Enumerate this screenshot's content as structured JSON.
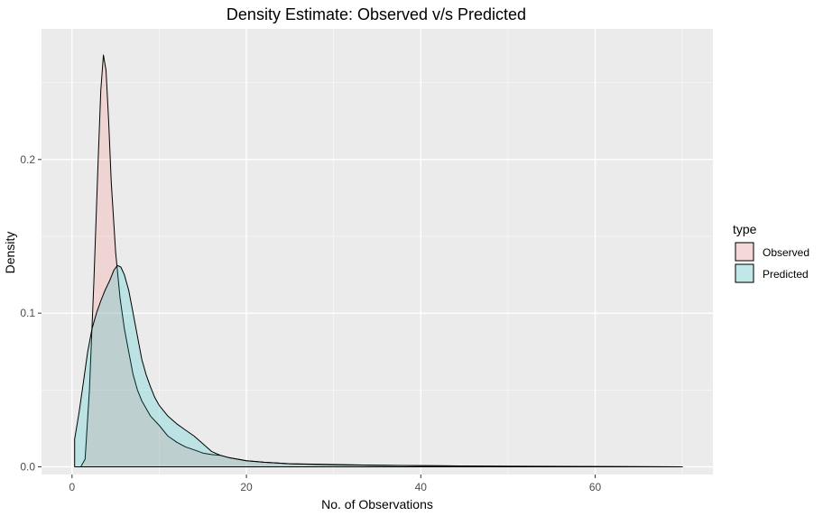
{
  "chart_data": {
    "type": "area",
    "title": "Density Estimate: Observed v/s Predicted",
    "xlabel": "No. of Observations",
    "ylabel": "Density",
    "xlim": [
      -3.5,
      73.5
    ],
    "ylim": [
      -0.005,
      0.285
    ],
    "x_ticks": [
      0,
      20,
      40,
      60
    ],
    "x_tick_labels": [
      "0",
      "20",
      "40",
      "60"
    ],
    "y_ticks": [
      0.0,
      0.1,
      0.2
    ],
    "y_tick_labels": [
      "0.0",
      "0.1",
      "0.2"
    ],
    "x_minor_ticks": [
      10,
      30,
      50,
      70
    ],
    "y_minor_ticks": [
      0.05,
      0.15,
      0.25
    ],
    "grid": true,
    "legend": {
      "title": "type",
      "position": "right"
    },
    "series": [
      {
        "name": "Observed",
        "fill": "#F8766D",
        "x": [
          0.5,
          1.0,
          1.5,
          2.0,
          2.5,
          3.0,
          3.3,
          3.6,
          3.9,
          4.2,
          4.5,
          5.0,
          5.5,
          6.0,
          6.5,
          7.0,
          7.5,
          8.0,
          8.5,
          9.0,
          10.0,
          11.0,
          12.0,
          13.0,
          14.0,
          15.0,
          16.0,
          17.0,
          18.0,
          20.0,
          22.0,
          25.0,
          30.0,
          35.0,
          40.0,
          45.0,
          50.0,
          60.0,
          70.0
        ],
        "y": [
          0.0,
          0.0,
          0.005,
          0.05,
          0.12,
          0.2,
          0.245,
          0.268,
          0.258,
          0.225,
          0.185,
          0.14,
          0.11,
          0.09,
          0.075,
          0.06,
          0.05,
          0.043,
          0.038,
          0.033,
          0.027,
          0.02,
          0.016,
          0.013,
          0.011,
          0.009,
          0.008,
          0.0075,
          0.006,
          0.004,
          0.003,
          0.002,
          0.0015,
          0.001,
          0.0008,
          0.0005,
          0.0003,
          0.0001,
          0.0
        ]
      },
      {
        "name": "Predicted",
        "fill": "#00BFC4",
        "x": [
          0.3,
          0.8,
          1.3,
          1.8,
          2.3,
          2.8,
          3.3,
          3.8,
          4.3,
          4.8,
          5.2,
          5.6,
          6.0,
          6.5,
          7.0,
          7.5,
          8.0,
          8.5,
          9.0,
          9.5,
          10.0,
          11.0,
          12.0,
          13.0,
          14.0,
          15.0,
          16.0,
          17.0,
          18.0,
          20.0,
          22.0,
          25.0,
          30.0,
          35.0,
          40.0,
          50.0,
          60.0,
          70.0
        ],
        "y": [
          0.018,
          0.035,
          0.055,
          0.075,
          0.09,
          0.1,
          0.108,
          0.115,
          0.121,
          0.128,
          0.131,
          0.13,
          0.125,
          0.115,
          0.1,
          0.085,
          0.07,
          0.06,
          0.052,
          0.045,
          0.04,
          0.033,
          0.028,
          0.024,
          0.02,
          0.015,
          0.01,
          0.0075,
          0.006,
          0.004,
          0.003,
          0.002,
          0.0013,
          0.001,
          0.0007,
          0.0004,
          0.0002,
          0.0
        ]
      }
    ]
  }
}
